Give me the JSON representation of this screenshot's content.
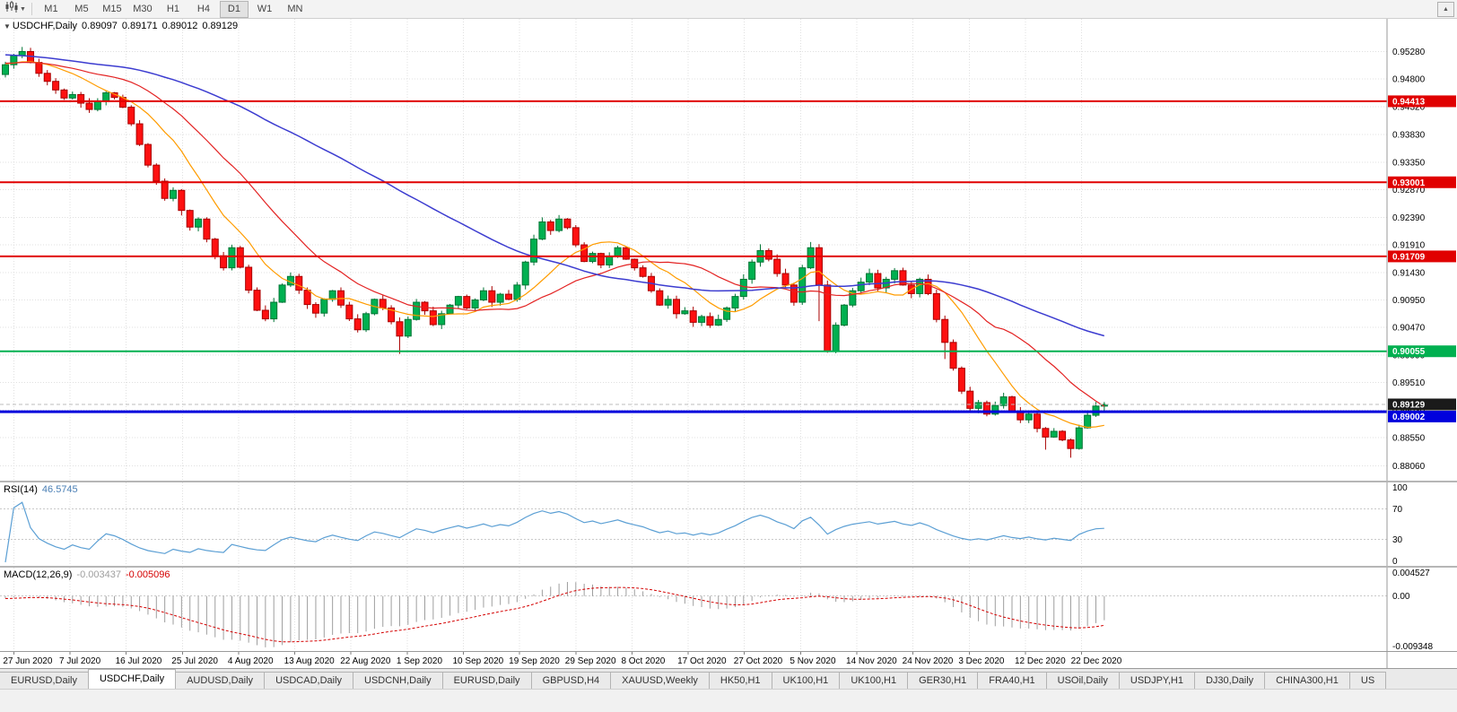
{
  "toolbar": {
    "scroll_up": "▲",
    "timeframes": [
      {
        "label": "M1",
        "active": false
      },
      {
        "label": "M5",
        "active": false
      },
      {
        "label": "M15",
        "active": false
      },
      {
        "label": "M30",
        "active": false
      },
      {
        "label": "H1",
        "active": false
      },
      {
        "label": "H4",
        "active": false
      },
      {
        "label": "D1",
        "active": true
      },
      {
        "label": "W1",
        "active": false
      },
      {
        "label": "MN",
        "active": false
      }
    ]
  },
  "chart": {
    "symbol_line": {
      "caret": "▼",
      "symbol": "USDCHF,Daily",
      "open": "0.89097",
      "high": "0.89171",
      "low": "0.89012",
      "close": "0.89129"
    }
  },
  "rsi": {
    "name": "RSI(14)",
    "value": "46.5745",
    "color": "#4a7fb5",
    "line_color": "#5b9fd4",
    "axis_labels": [
      "100",
      "70",
      "30",
      "0"
    ],
    "level_lines": [
      70,
      30
    ],
    "range": [
      0,
      100
    ]
  },
  "macd": {
    "name": "MACD(12,26,9)",
    "macd_value": "-0.003437",
    "signal_value": "-0.005096",
    "axis_labels": [
      "0.004527",
      "0.00",
      "-0.009348"
    ],
    "range": [
      -0.009348,
      0.004527
    ],
    "histogram_color": "#9e9e9e",
    "signal_color": "#d40000"
  },
  "tabs": [
    {
      "label": "EURUSD,Daily",
      "active": false
    },
    {
      "label": "USDCHF,Daily",
      "active": true
    },
    {
      "label": "AUDUSD,Daily",
      "active": false
    },
    {
      "label": "USDCAD,Daily",
      "active": false
    },
    {
      "label": "USDCNH,Daily",
      "active": false
    },
    {
      "label": "EURUSD,Daily",
      "active": false
    },
    {
      "label": "GBPUSD,H4",
      "active": false
    },
    {
      "label": "XAUUSD,Weekly",
      "active": false
    },
    {
      "label": "HK50,H1",
      "active": false
    },
    {
      "label": "UK100,H1",
      "active": false
    },
    {
      "label": "UK100,H1",
      "active": false
    },
    {
      "label": "GER30,H1",
      "active": false
    },
    {
      "label": "FRA40,H1",
      "active": false
    },
    {
      "label": "USOil,Daily",
      "active": false
    },
    {
      "label": "USDJPY,H1",
      "active": false
    },
    {
      "label": "DJ30,Daily",
      "active": false
    },
    {
      "label": "CHINA300,H1",
      "active": false
    },
    {
      "label": "US",
      "active": false
    }
  ],
  "chart_data": {
    "type": "candlestick",
    "symbol": "USDCHF",
    "timeframe": "Daily",
    "current_bar": {
      "open": 0.89097,
      "high": 0.89171,
      "low": 0.89012,
      "close": 0.89129
    },
    "price_range": [
      0.878,
      0.9585
    ],
    "price_axis_labels": [
      "0.95280",
      "0.94800",
      "0.94320",
      "0.93830",
      "0.93350",
      "0.92870",
      "0.92390",
      "0.91910",
      "0.91430",
      "0.90950",
      "0.90470",
      "0.89990",
      "0.89510",
      "0.89030",
      "0.88550",
      "0.88060"
    ],
    "date_labels": [
      "27 Jun 2020",
      "7 Jul 2020",
      "16 Jul 2020",
      "25 Jul 2020",
      "4 Aug 2020",
      "13 Aug 2020",
      "22 Aug 2020",
      "1 Sep 2020",
      "10 Sep 2020",
      "19 Sep 2020",
      "29 Sep 2020",
      "8 Oct 2020",
      "17 Oct 2020",
      "27 Oct 2020",
      "5 Nov 2020",
      "14 Nov 2020",
      "24 Nov 2020",
      "3 Dec 2020",
      "12 Dec 2020",
      "22 Dec 2020"
    ],
    "first_open": 0.9488,
    "closes": [
      0.9505,
      0.9521,
      0.9528,
      0.9509,
      0.949,
      0.9476,
      0.9461,
      0.9447,
      0.9453,
      0.9438,
      0.9427,
      0.9441,
      0.9456,
      0.9448,
      0.9431,
      0.9402,
      0.9366,
      0.933,
      0.9302,
      0.9272,
      0.9286,
      0.9251,
      0.9222,
      0.9236,
      0.9201,
      0.9172,
      0.9151,
      0.9186,
      0.9152,
      0.9112,
      0.9077,
      0.9062,
      0.9091,
      0.9121,
      0.9136,
      0.9112,
      0.9087,
      0.9072,
      0.9096,
      0.9111,
      0.9086,
      0.9062,
      0.9043,
      0.9071,
      0.9096,
      0.9081,
      0.9057,
      0.9032,
      0.9061,
      0.9091,
      0.9076,
      0.9052,
      0.9071,
      0.9086,
      0.9101,
      0.9081,
      0.9095,
      0.9111,
      0.9091,
      0.9105,
      0.9096,
      0.9121,
      0.9161,
      0.9201,
      0.9231,
      0.9216,
      0.9236,
      0.9221,
      0.9191,
      0.9162,
      0.9176,
      0.9156,
      0.9171,
      0.9186,
      0.9166,
      0.9151,
      0.9136,
      0.9111,
      0.9086,
      0.9096,
      0.9071,
      0.9076,
      0.9056,
      0.9066,
      0.9051,
      0.9061,
      0.9081,
      0.9101,
      0.9131,
      0.9161,
      0.9181,
      0.9166,
      0.9141,
      0.9121,
      0.9091,
      0.9151,
      0.9186,
      0.9121,
      0.9006,
      0.9051,
      0.9086,
      0.9111,
      0.9126,
      0.9141,
      0.9116,
      0.9131,
      0.9146,
      0.9121,
      0.9106,
      0.9131,
      0.9106,
      0.9061,
      0.9021,
      0.8976,
      0.8936,
      0.8906,
      0.8916,
      0.8896,
      0.8911,
      0.8926,
      0.8901,
      0.8886,
      0.8896,
      0.8871,
      0.8856,
      0.8866,
      0.8851,
      0.8836,
      0.8872,
      0.8894,
      0.891,
      0.89129
    ],
    "prehistory": [
      0.957,
      0.9568,
      0.9565,
      0.9561,
      0.9558,
      0.9556,
      0.9553,
      0.9549,
      0.9546,
      0.9544,
      0.9541,
      0.9538,
      0.9536,
      0.9533,
      0.953,
      0.9528,
      0.9526,
      0.9524,
      0.9523,
      0.9521,
      0.952,
      0.9519,
      0.9518,
      0.9517,
      0.9516,
      0.9515,
      0.9514,
      0.9513,
      0.9513,
      0.9512,
      0.9512,
      0.9511,
      0.9511,
      0.951,
      0.951,
      0.951,
      0.9509,
      0.9509,
      0.9509,
      0.9508,
      0.9508,
      0.9508,
      0.9508,
      0.9508,
      0.9508,
      0.9508,
      0.9507,
      0.9507,
      0.9507,
      0.9507,
      0.9506,
      0.9506,
      0.9506,
      0.9506
    ],
    "wick_overrides": {
      "2": {
        "h": 0.9536
      },
      "47": {
        "l": 0.9001
      },
      "64": {
        "h": 0.9239
      },
      "66": {
        "h": 0.9243
      },
      "90": {
        "h": 0.9192
      },
      "96": {
        "h": 0.9196
      },
      "97": {
        "l": 0.9058
      },
      "98": {
        "l": 0.9003
      },
      "112": {
        "l": 0.8992
      },
      "124": {
        "l": 0.8834
      },
      "127": {
        "l": 0.882
      },
      "131": {
        "h": 0.89171,
        "l": 0.89012
      }
    },
    "moving_averages": [
      {
        "period": 10,
        "color": "#ff9c00"
      },
      {
        "period": 21,
        "color": "#e32222"
      },
      {
        "period": 55,
        "color": "#3c3cd0"
      }
    ],
    "hlines": [
      {
        "value": 0.94413,
        "label": "0.94413",
        "color": "#e00000",
        "width": 2
      },
      {
        "value": 0.93001,
        "label": "0.93001",
        "color": "#e00000",
        "width": 2
      },
      {
        "value": 0.91709,
        "label": "0.91709",
        "color": "#e00000",
        "width": 2
      },
      {
        "value": 0.90055,
        "label": "0.90055",
        "color": "#00b050",
        "width": 2
      },
      {
        "value": 0.89002,
        "label": "0.89002",
        "color": "#0000dd",
        "width": 3
      }
    ],
    "bid_line": {
      "value": 0.89129,
      "label": "0.89129",
      "tag_color": "#1a1a1a"
    },
    "up_color": "#00b050",
    "up_stroke": "#007535",
    "down_color": "#fe1010",
    "down_stroke": "#a80000",
    "grid_color": "#e0e0e0"
  }
}
